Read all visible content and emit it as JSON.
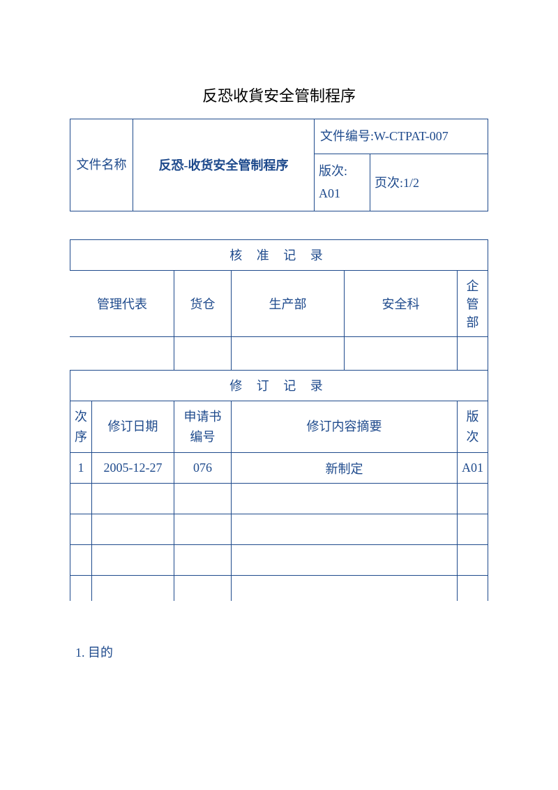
{
  "page_title": "反恐收貨安全管制程序",
  "header": {
    "name_label": "文件名称",
    "doc_title": "反恐-收货安全管制程序",
    "doc_number_label": "文件编号:",
    "doc_number_value": "W-CTPAT-007",
    "version_label": "版次:",
    "version_value": "A01",
    "page_label": "页次:",
    "page_value": "1/2"
  },
  "approval": {
    "title": "核 准 记 录",
    "cols": [
      "管理代表",
      "货仓",
      "生产部",
      "安全科",
      "企管部"
    ]
  },
  "revision": {
    "title": "修 订 记 录",
    "cols": {
      "seq": "次序",
      "date": "修订日期",
      "appno": "申请书编号",
      "summary": "修订内容摘要",
      "ver": "版次"
    },
    "rows": [
      {
        "seq": "1",
        "date": "2005-12-27",
        "appno": "076",
        "summary": "新制定",
        "ver": "A01"
      }
    ]
  },
  "section1": "1. 目的",
  "colors": {
    "border": "#1e4a8c",
    "text": "#1e4a8c",
    "title_text": "#000000",
    "background": "#ffffff"
  }
}
